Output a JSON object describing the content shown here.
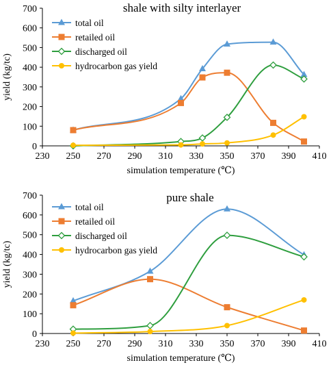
{
  "chart_data": [
    {
      "type": "line",
      "title": "shale with silty interlayer",
      "xlabel": "simulation temperature (℃)",
      "ylabel": "yield (kg/tc)",
      "xlim": [
        230,
        410
      ],
      "ylim": [
        0,
        700
      ],
      "xticks": [
        230,
        250,
        270,
        290,
        310,
        330,
        350,
        370,
        390,
        410
      ],
      "yticks": [
        0,
        100,
        200,
        300,
        400,
        500,
        600,
        700
      ],
      "grid": false,
      "legend_position": "top-left",
      "series": [
        {
          "name": "total oil",
          "color": "#5b9bd5",
          "marker": "triangle",
          "points": [
            [
              250,
              80
            ],
            [
              320,
              240
            ],
            [
              334,
              392
            ],
            [
              350,
              517
            ],
            [
              380,
              527
            ],
            [
              400,
              362
            ]
          ]
        },
        {
          "name": "retailed oil",
          "color": "#ed7d31",
          "marker": "square",
          "points": [
            [
              250,
              80
            ],
            [
              320,
              218
            ],
            [
              334,
              348
            ],
            [
              350,
              372
            ],
            [
              380,
              117
            ],
            [
              400,
              22
            ]
          ]
        },
        {
          "name": "discharged oil",
          "color": "#2e9e3e",
          "marker": "diamond-open",
          "points": [
            [
              250,
              0
            ],
            [
              320,
              22
            ],
            [
              334,
              40
            ],
            [
              350,
              145
            ],
            [
              380,
              411
            ],
            [
              400,
              340
            ]
          ]
        },
        {
          "name": "hydrocarbon gas yield",
          "color": "#ffc000",
          "marker": "circle",
          "points": [
            [
              250,
              3
            ],
            [
              320,
              5
            ],
            [
              334,
              10
            ],
            [
              350,
              15
            ],
            [
              380,
              55
            ],
            [
              400,
              148
            ]
          ]
        }
      ]
    },
    {
      "type": "line",
      "title": "pure shale",
      "xlabel": "simulation temperature (℃)",
      "ylabel": "yield (kg/tc)",
      "xlim": [
        230,
        410
      ],
      "ylim": [
        0,
        700
      ],
      "xticks": [
        230,
        250,
        270,
        290,
        310,
        330,
        350,
        370,
        390,
        410
      ],
      "yticks": [
        0,
        100,
        200,
        300,
        400,
        500,
        600,
        700
      ],
      "grid": false,
      "legend_position": "top-left",
      "series": [
        {
          "name": "total oil",
          "color": "#5b9bd5",
          "marker": "triangle",
          "points": [
            [
              250,
              165
            ],
            [
              300,
              315
            ],
            [
              350,
              630
            ],
            [
              400,
              398
            ]
          ]
        },
        {
          "name": "retailed oil",
          "color": "#ed7d31",
          "marker": "square",
          "points": [
            [
              250,
              143
            ],
            [
              300,
              275
            ],
            [
              350,
              133
            ],
            [
              400,
              15
            ]
          ]
        },
        {
          "name": "discharged oil",
          "color": "#2e9e3e",
          "marker": "diamond-open",
          "points": [
            [
              250,
              22
            ],
            [
              300,
              40
            ],
            [
              350,
              497
            ],
            [
              400,
              388
            ]
          ]
        },
        {
          "name": "hydrocarbon gas yield",
          "color": "#ffc000",
          "marker": "circle",
          "points": [
            [
              250,
              2
            ],
            [
              300,
              10
            ],
            [
              350,
              40
            ],
            [
              400,
              170
            ]
          ]
        }
      ]
    }
  ]
}
